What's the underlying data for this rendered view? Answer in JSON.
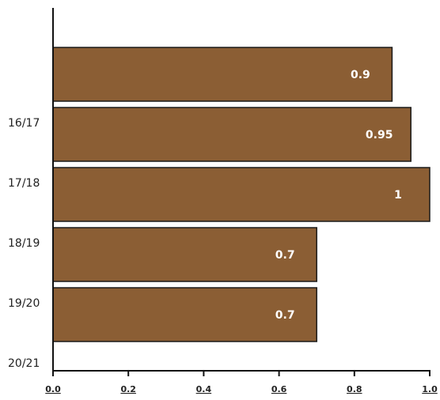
{
  "chart_data": {
    "type": "bar",
    "orientation": "horizontal",
    "category_labels": [
      "16/17",
      "17/18",
      "18/19",
      "19/20",
      "20/21"
    ],
    "values": [
      0.9,
      0.95,
      1,
      0.7,
      0.7
    ],
    "value_labels": [
      "0.9",
      "0.95",
      "1",
      "0.7",
      "0.7"
    ],
    "xlim": [
      0,
      1.0
    ],
    "x_ticks": [
      0.0,
      0.2,
      0.4,
      0.6,
      0.8,
      1.0
    ],
    "x_tick_labels": [
      "0.0",
      "0.2",
      "0.4",
      "0.6",
      "0.8",
      "1.0"
    ],
    "grid": false,
    "colors": {
      "bar": "#8b5e34",
      "bar_border": "#1a1a1a",
      "axis": "#111111",
      "value_label": "#ffffff"
    }
  }
}
